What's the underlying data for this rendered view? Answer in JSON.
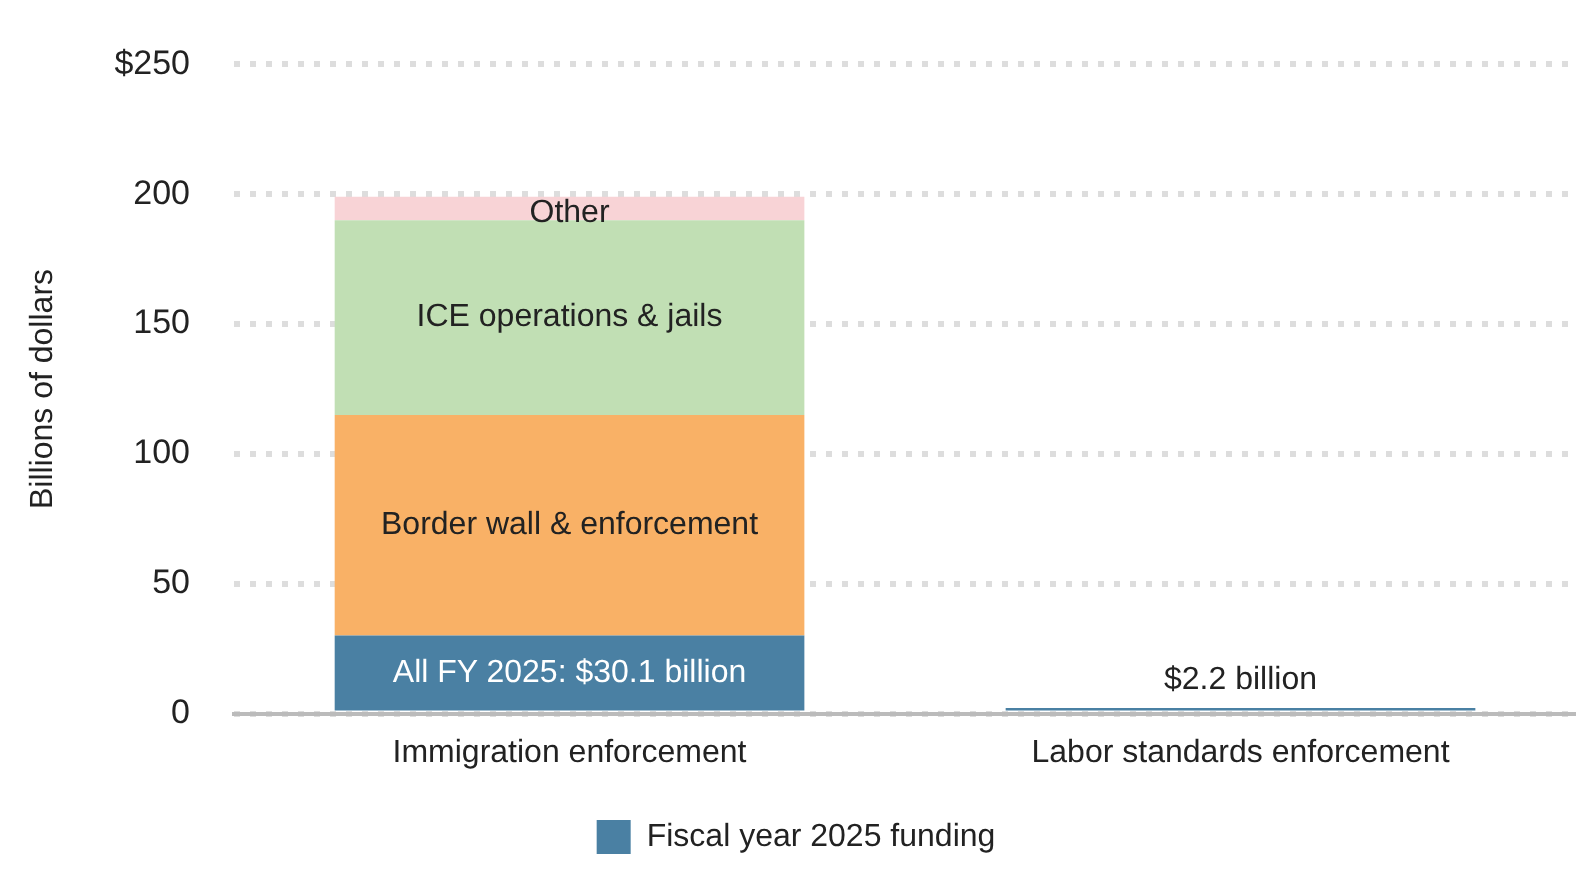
{
  "chart_data": {
    "type": "bar",
    "stacked": true,
    "ylabel": "Billions of dollars",
    "categories": [
      "Immigration enforcement",
      "Labor standards enforcement"
    ],
    "series": [
      {
        "name": "Fiscal year 2025 funding",
        "color": "#4a80a3",
        "values": [
          30.1,
          2.2
        ],
        "value_labels": [
          "All FY 2025: $30.1 billion",
          "$2.2 billion"
        ]
      },
      {
        "name": "Border wall & enforcement",
        "color": "#f9b166",
        "values": [
          84.9,
          null
        ]
      },
      {
        "name": "ICE operations & jails",
        "color": "#c1dfb4",
        "values": [
          75,
          null
        ]
      },
      {
        "name": "Other",
        "color": "#f8d3d6",
        "values": [
          9,
          null
        ]
      }
    ],
    "ylim": [
      0,
      250
    ],
    "yticks": [
      0,
      50,
      100,
      150,
      200,
      {
        "value": 250,
        "label": "$250"
      }
    ],
    "grid": "y",
    "legend": "bottom"
  }
}
